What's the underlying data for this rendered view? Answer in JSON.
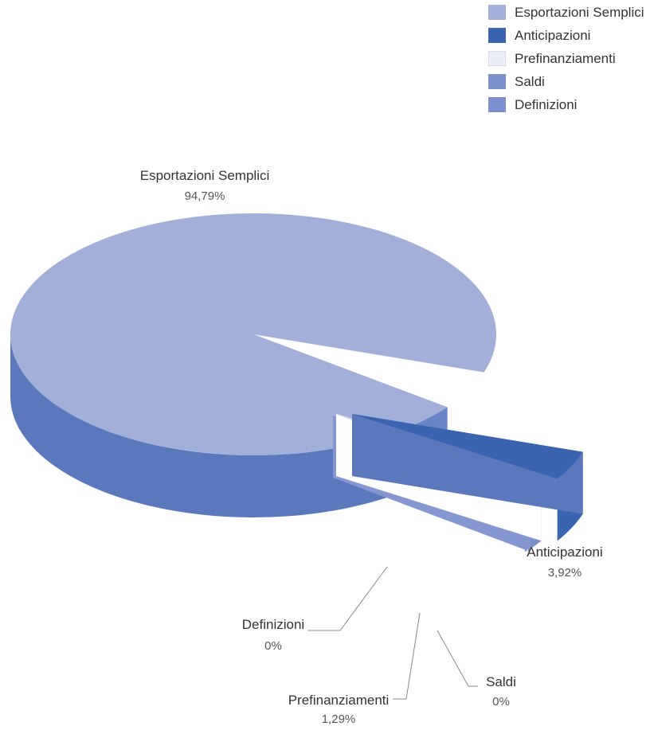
{
  "chart_data": {
    "type": "pie",
    "style": "3d-exploded",
    "slices": [
      {
        "label": "Esportazioni Semplici",
        "value": 94.79,
        "display": "94,79%",
        "color": "#a1afd9"
      },
      {
        "label": "Anticipazioni",
        "value": 3.92,
        "display": "3,92%",
        "color": "#3a63b0"
      },
      {
        "label": "Prefinanziamenti",
        "value": 1.29,
        "display": "1,29%",
        "color": "#ebeef8"
      },
      {
        "label": "Saldi",
        "value": 0,
        "display": "0%",
        "color": "#7a8fcb"
      },
      {
        "label": "Definizioni",
        "value": 0,
        "display": "0%",
        "color": "#7a8fcb"
      }
    ],
    "legend": "top-right",
    "side_color": "#5b78bd"
  }
}
